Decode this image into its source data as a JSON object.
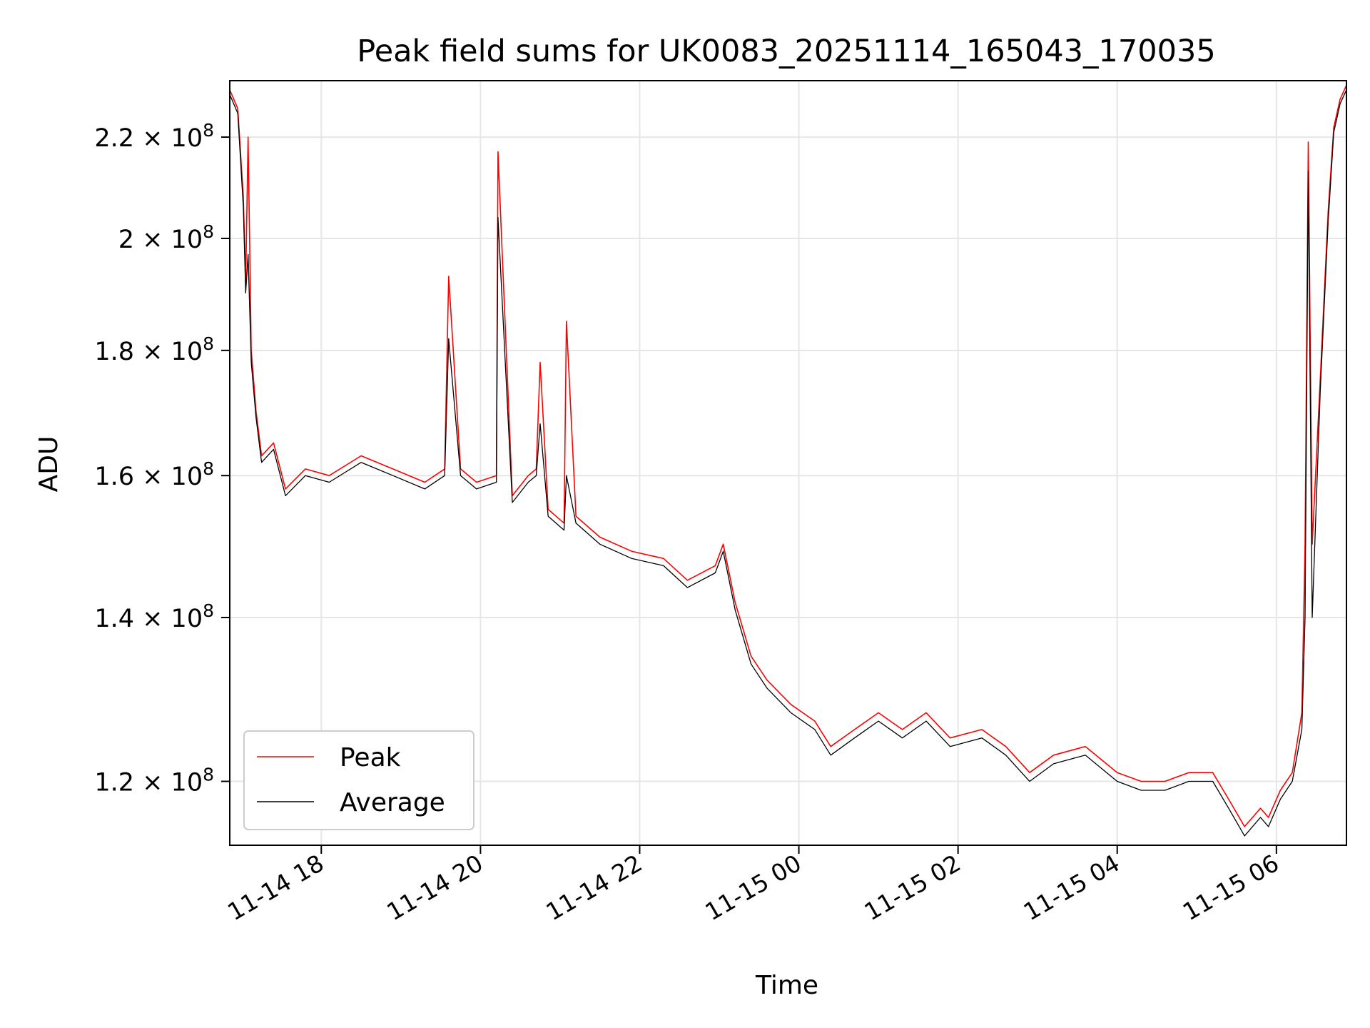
{
  "chart_data": {
    "type": "line",
    "title": "Peak field sums for UK0083_20251114_165043_170035",
    "xlabel": "Time",
    "ylabel": "ADU",
    "yscale": "log",
    "ylim": [
      113000000,
      232000000
    ],
    "xlim": [
      "2025-11-14 16:51",
      "2025-11-15 06:53"
    ],
    "grid": true,
    "legend_position": "lower-left",
    "x_ticks": [
      "11-14 18",
      "11-14 20",
      "11-14 22",
      "11-15 00",
      "11-15 02",
      "11-15 04",
      "11-15 06"
    ],
    "x_tick_hours": [
      18,
      20,
      22,
      24,
      26,
      28,
      30
    ],
    "y_ticks": [
      {
        "value": 220000000,
        "mantissa": "2.2",
        "exponent": "8"
      },
      {
        "value": 200000000,
        "mantissa": "2",
        "exponent": "8"
      },
      {
        "value": 180000000,
        "mantissa": "1.8",
        "exponent": "8"
      },
      {
        "value": 160000000,
        "mantissa": "1.6",
        "exponent": "8"
      },
      {
        "value": 140000000,
        "mantissa": "1.4",
        "exponent": "8"
      },
      {
        "value": 120000000,
        "mantissa": "1.2",
        "exponent": "8"
      }
    ],
    "x_hours": [
      16.85,
      16.95,
      17.02,
      17.05,
      17.08,
      17.12,
      17.18,
      17.25,
      17.4,
      17.55,
      17.8,
      18.1,
      18.5,
      18.9,
      19.3,
      19.55,
      19.6,
      19.75,
      19.95,
      20.2,
      20.22,
      20.4,
      20.6,
      20.7,
      20.75,
      20.85,
      21.05,
      21.08,
      21.2,
      21.5,
      21.9,
      22.3,
      22.6,
      22.95,
      23.05,
      23.2,
      23.4,
      23.6,
      23.9,
      24.2,
      24.4,
      24.7,
      25.0,
      25.3,
      25.6,
      25.9,
      26.3,
      26.6,
      26.9,
      27.2,
      27.6,
      28.0,
      28.3,
      28.6,
      28.9,
      29.2,
      29.4,
      29.6,
      29.8,
      29.9,
      30.05,
      30.2,
      30.32,
      30.36,
      30.4,
      30.45,
      30.55,
      30.65,
      30.72,
      30.8,
      30.88
    ],
    "series": [
      {
        "name": "Peak",
        "color": "#ff0000",
        "values": [
          230000000,
          226000000,
          208000000,
          192000000,
          220000000,
          180000000,
          170000000,
          163000000,
          165000000,
          158000000,
          161000000,
          160000000,
          163000000,
          161000000,
          159000000,
          161000000,
          193000000,
          161000000,
          159000000,
          160000000,
          217000000,
          157000000,
          160000000,
          161000000,
          178000000,
          155000000,
          153000000,
          185000000,
          154000000,
          151000000,
          149000000,
          148000000,
          145000000,
          147000000,
          150000000,
          142000000,
          135000000,
          132000000,
          129000000,
          127000000,
          124000000,
          126000000,
          128000000,
          126000000,
          128000000,
          125000000,
          126000000,
          124000000,
          121000000,
          123000000,
          124000000,
          121000000,
          120000000,
          120000000,
          121000000,
          121000000,
          118000000,
          115000000,
          117000000,
          116000000,
          119000000,
          121000000,
          128000000,
          150000000,
          219000000,
          150000000,
          175000000,
          205000000,
          222000000,
          228000000,
          231000000
        ]
      },
      {
        "name": "Average",
        "color": "#000000",
        "values": [
          229000000,
          225000000,
          206000000,
          190000000,
          197000000,
          178000000,
          169000000,
          162000000,
          164000000,
          157000000,
          160000000,
          159000000,
          162000000,
          160000000,
          158000000,
          160000000,
          182000000,
          160000000,
          158000000,
          159000000,
          204000000,
          156000000,
          159000000,
          160000000,
          168000000,
          154000000,
          152000000,
          160000000,
          153000000,
          150000000,
          148000000,
          147000000,
          144000000,
          146000000,
          149000000,
          141000000,
          134000000,
          131000000,
          128000000,
          126000000,
          123000000,
          125000000,
          127000000,
          125000000,
          127000000,
          124000000,
          125000000,
          123000000,
          120000000,
          122000000,
          123000000,
          120000000,
          119000000,
          119000000,
          120000000,
          120000000,
          117000000,
          114000000,
          116000000,
          115000000,
          118000000,
          120000000,
          126000000,
          140000000,
          213000000,
          140000000,
          173000000,
          203000000,
          221000000,
          227000000,
          230000000
        ]
      }
    ]
  }
}
